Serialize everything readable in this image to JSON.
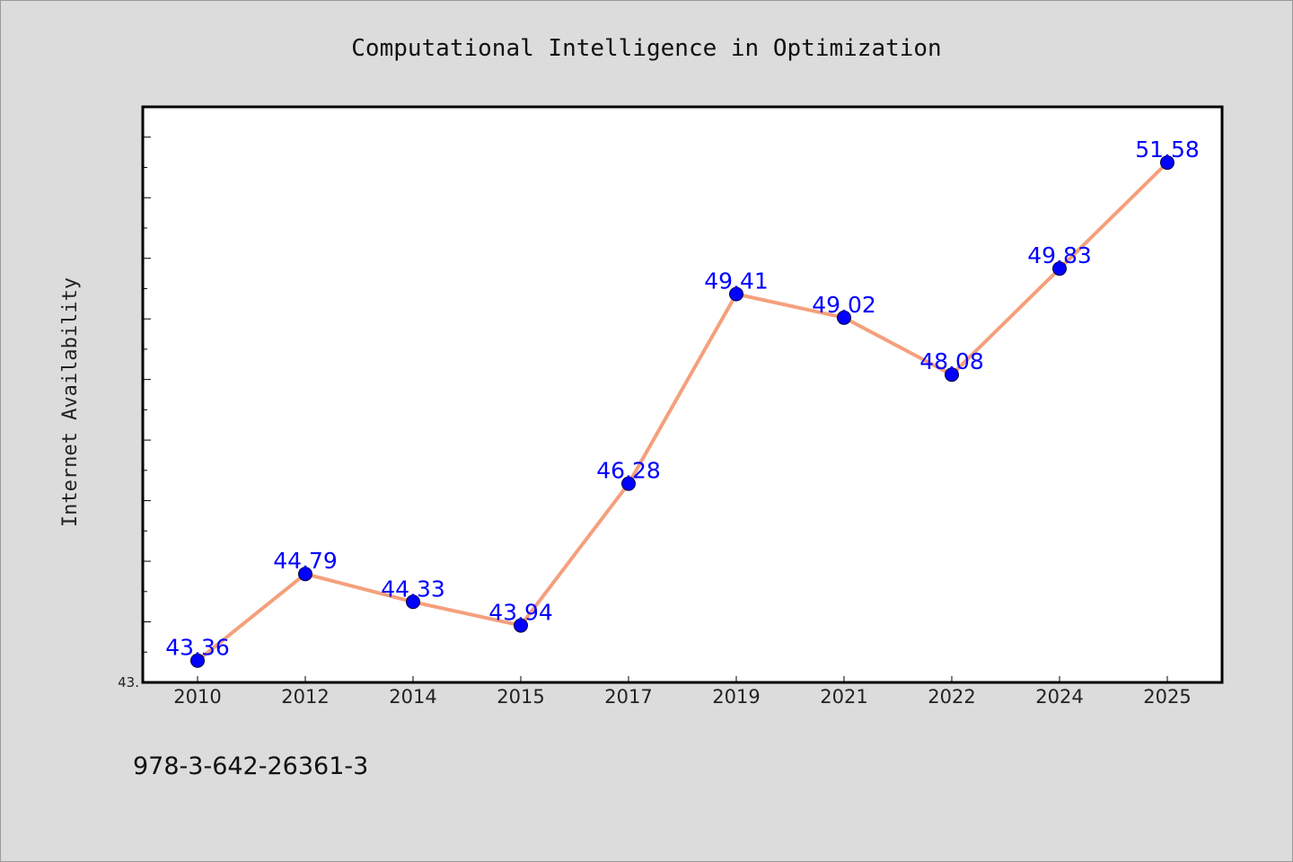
{
  "chart_data": {
    "type": "line",
    "title": "Computational Intelligence in Optimization",
    "ylabel": "Internet Availability",
    "xlabel": "",
    "categories": [
      "2010",
      "2012",
      "2014",
      "2015",
      "2017",
      "2019",
      "2021",
      "2022",
      "2024",
      "2025"
    ],
    "series": [
      {
        "values": [
          43.36,
          44.79,
          44.33,
          43.94,
          46.28,
          49.41,
          49.02,
          48.08,
          49.83,
          51.58
        ],
        "labels": [
          "43.36",
          "44.79",
          "44.33",
          "43.94",
          "46.28",
          "49.41",
          "49.02",
          "48.08",
          "49.83",
          "51.58"
        ],
        "line_color": "#f4a07c",
        "marker_color": "#0000ff"
      }
    ],
    "ylim": [
      43.0,
      52.5
    ],
    "y_min_label": "43.",
    "grid": false,
    "legend": "none"
  },
  "footer": {
    "text": "978-3-642-26361-3"
  },
  "colors": {
    "background": "#dcdcdc",
    "plot_background": "#ffffff",
    "line": "#f4a07c",
    "marker": "#0000ff",
    "data_label": "#0000ff"
  }
}
